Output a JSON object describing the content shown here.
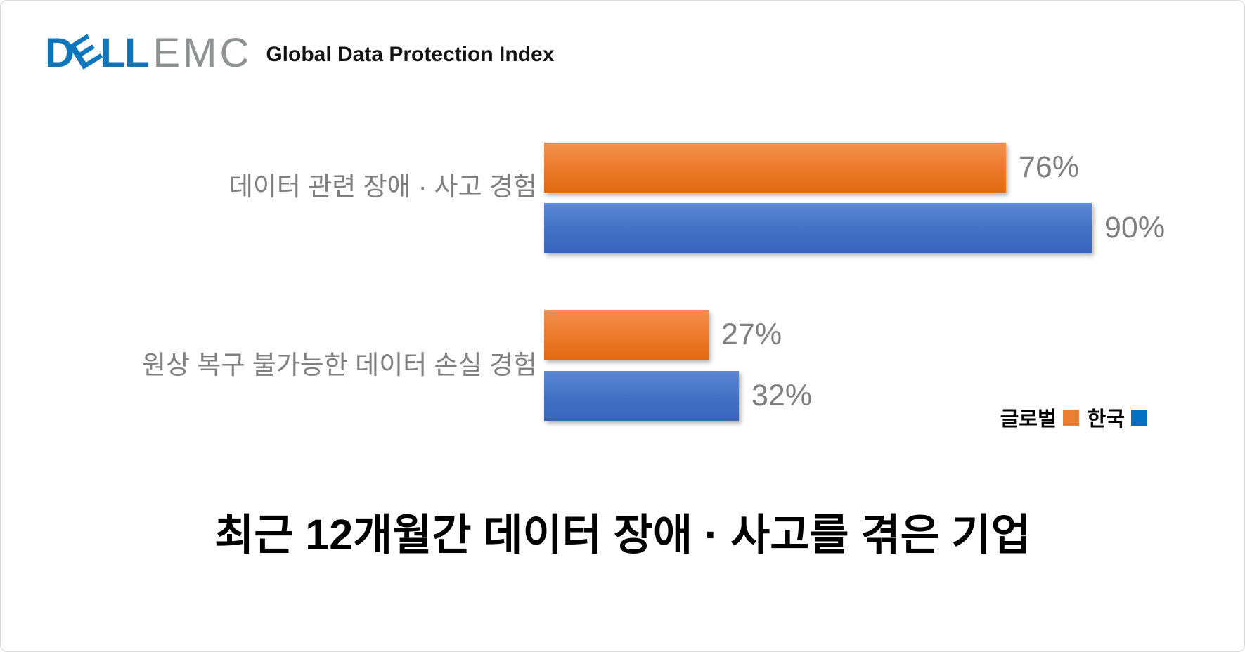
{
  "header": {
    "logo_d": "D",
    "logo_e": "E",
    "logo_ll": "LL",
    "logo_emc": "EMC",
    "subtitle": "Global Data Protection Index",
    "dell_blue": "#0e76bc",
    "emc_gray": "#8e9293"
  },
  "chart_data": {
    "type": "bar",
    "orientation": "horizontal",
    "title": "최근 12개월간 데이터 장애 · 사고를 겪은 기업",
    "categories": [
      "데이터 관련 장애 · 사고 경험",
      "원상 복구 불가능한 데이터 손실 경험"
    ],
    "series": [
      {
        "name": "글로벌",
        "color": "#ED7D31",
        "values": [
          76,
          27
        ]
      },
      {
        "name": "한국",
        "color": "#4472C4",
        "values": [
          90,
          32
        ]
      }
    ],
    "value_suffix": "%",
    "xlim": [
      0,
      100
    ],
    "grid": false,
    "legend_position": "bottom-right",
    "value_label_color": "#7f7f7f",
    "category_label_color": "#808080"
  },
  "legend": {
    "items": [
      {
        "label": "글로벌",
        "color": "#ED7D31"
      },
      {
        "label": "한국",
        "color": "#0070C0"
      }
    ]
  }
}
